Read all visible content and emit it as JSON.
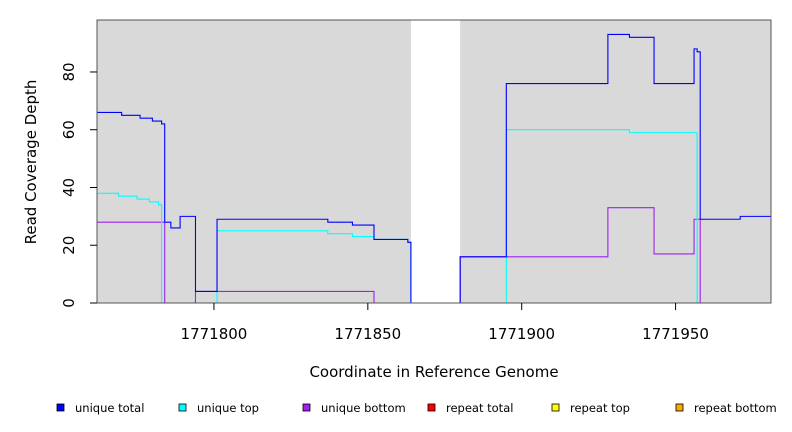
{
  "chart_data": {
    "type": "line",
    "title": "",
    "xlabel": "Coordinate in Reference Genome",
    "ylabel": "Read Coverage Depth",
    "xlim": [
      1771762,
      1771981
    ],
    "ylim": [
      0,
      98
    ],
    "x_ticks": [
      1771800,
      1771850,
      1771900,
      1771950
    ],
    "x_tick_labels": [
      "1771800",
      "1771850",
      "1771900",
      "1771950"
    ],
    "y_ticks": [
      0,
      20,
      40,
      60,
      80
    ],
    "y_tick_labels": [
      "0",
      "20",
      "40",
      "60",
      "80"
    ],
    "shaded_regions": [
      {
        "x0": 1771762,
        "x1": 1771864,
        "color": "#d9d9d9"
      },
      {
        "x0": 1771880,
        "x1": 1771981,
        "color": "#d9d9d9"
      }
    ],
    "legend_position": "bottom",
    "series": [
      {
        "name": "unique total",
        "color": "#0000ff",
        "points": [
          [
            1771762,
            66
          ],
          [
            1771770,
            66
          ],
          [
            1771770,
            65
          ],
          [
            1771776,
            65
          ],
          [
            1771776,
            64
          ],
          [
            1771780,
            64
          ],
          [
            1771780,
            63
          ],
          [
            1771783,
            63
          ],
          [
            1771783,
            62
          ],
          [
            1771784,
            62
          ],
          [
            1771784,
            28
          ],
          [
            1771786,
            28
          ],
          [
            1771786,
            26
          ],
          [
            1771789,
            26
          ],
          [
            1771789,
            30
          ],
          [
            1771794,
            30
          ],
          [
            1771794,
            4
          ],
          [
            1771801,
            4
          ],
          [
            1771801,
            29
          ],
          [
            1771837,
            29
          ],
          [
            1771837,
            28
          ],
          [
            1771845,
            28
          ],
          [
            1771845,
            27
          ],
          [
            1771852,
            27
          ],
          [
            1771852,
            22
          ],
          [
            1771863,
            22
          ],
          [
            1771863,
            21
          ],
          [
            1771864,
            21
          ],
          [
            1771864,
            0
          ],
          [
            1771880,
            0
          ],
          [
            1771880,
            16
          ],
          [
            1771895,
            16
          ],
          [
            1771895,
            76
          ],
          [
            1771928,
            76
          ],
          [
            1771928,
            93
          ],
          [
            1771935,
            93
          ],
          [
            1771935,
            92
          ],
          [
            1771943,
            92
          ],
          [
            1771943,
            76
          ],
          [
            1771956,
            76
          ],
          [
            1771956,
            88
          ],
          [
            1771957,
            88
          ],
          [
            1771957,
            87
          ],
          [
            1771958,
            87
          ],
          [
            1771958,
            29
          ],
          [
            1771971,
            29
          ],
          [
            1771971,
            30
          ],
          [
            1771981,
            30
          ]
        ]
      },
      {
        "name": "unique top",
        "color": "#00ffff",
        "points": [
          [
            1771762,
            38
          ],
          [
            1771769,
            38
          ],
          [
            1771769,
            37
          ],
          [
            1771775,
            37
          ],
          [
            1771775,
            36
          ],
          [
            1771779,
            36
          ],
          [
            1771779,
            35
          ],
          [
            1771782,
            35
          ],
          [
            1771782,
            34
          ],
          [
            1771783,
            34
          ],
          [
            1771783,
            0
          ],
          [
            1771801,
            0
          ],
          [
            1771801,
            25
          ],
          [
            1771837,
            25
          ],
          [
            1771837,
            24
          ],
          [
            1771845,
            24
          ],
          [
            1771845,
            23
          ],
          [
            1771852,
            23
          ],
          [
            1771852,
            22
          ],
          [
            1771863,
            22
          ],
          [
            1771863,
            21
          ],
          [
            1771864,
            21
          ],
          [
            1771864,
            0
          ],
          [
            1771895,
            0
          ],
          [
            1771895,
            60
          ],
          [
            1771935,
            60
          ],
          [
            1771935,
            59
          ],
          [
            1771957,
            59
          ],
          [
            1771957,
            0
          ],
          [
            1771981,
            0
          ]
        ]
      },
      {
        "name": "unique bottom",
        "color": "#a020f0",
        "points": [
          [
            1771762,
            28
          ],
          [
            1771784,
            28
          ],
          [
            1771784,
            0
          ],
          [
            1771794,
            0
          ],
          [
            1771794,
            4
          ],
          [
            1771852,
            4
          ],
          [
            1771852,
            0
          ],
          [
            1771880,
            0
          ],
          [
            1771880,
            16
          ],
          [
            1771928,
            16
          ],
          [
            1771928,
            33
          ],
          [
            1771943,
            33
          ],
          [
            1771943,
            17
          ],
          [
            1771956,
            17
          ],
          [
            1771956,
            29
          ],
          [
            1771958,
            29
          ],
          [
            1771958,
            0
          ],
          [
            1771981,
            0
          ]
        ]
      },
      {
        "name": "repeat total",
        "color": "#ff0000",
        "points": [
          [
            1771762,
            0
          ],
          [
            1771981,
            0
          ]
        ]
      },
      {
        "name": "repeat top",
        "color": "#ffff00",
        "points": [
          [
            1771762,
            0
          ],
          [
            1771981,
            0
          ]
        ]
      },
      {
        "name": "repeat bottom",
        "color": "#ffa500",
        "points": [
          [
            1771762,
            0
          ],
          [
            1771981,
            0
          ]
        ]
      }
    ]
  }
}
